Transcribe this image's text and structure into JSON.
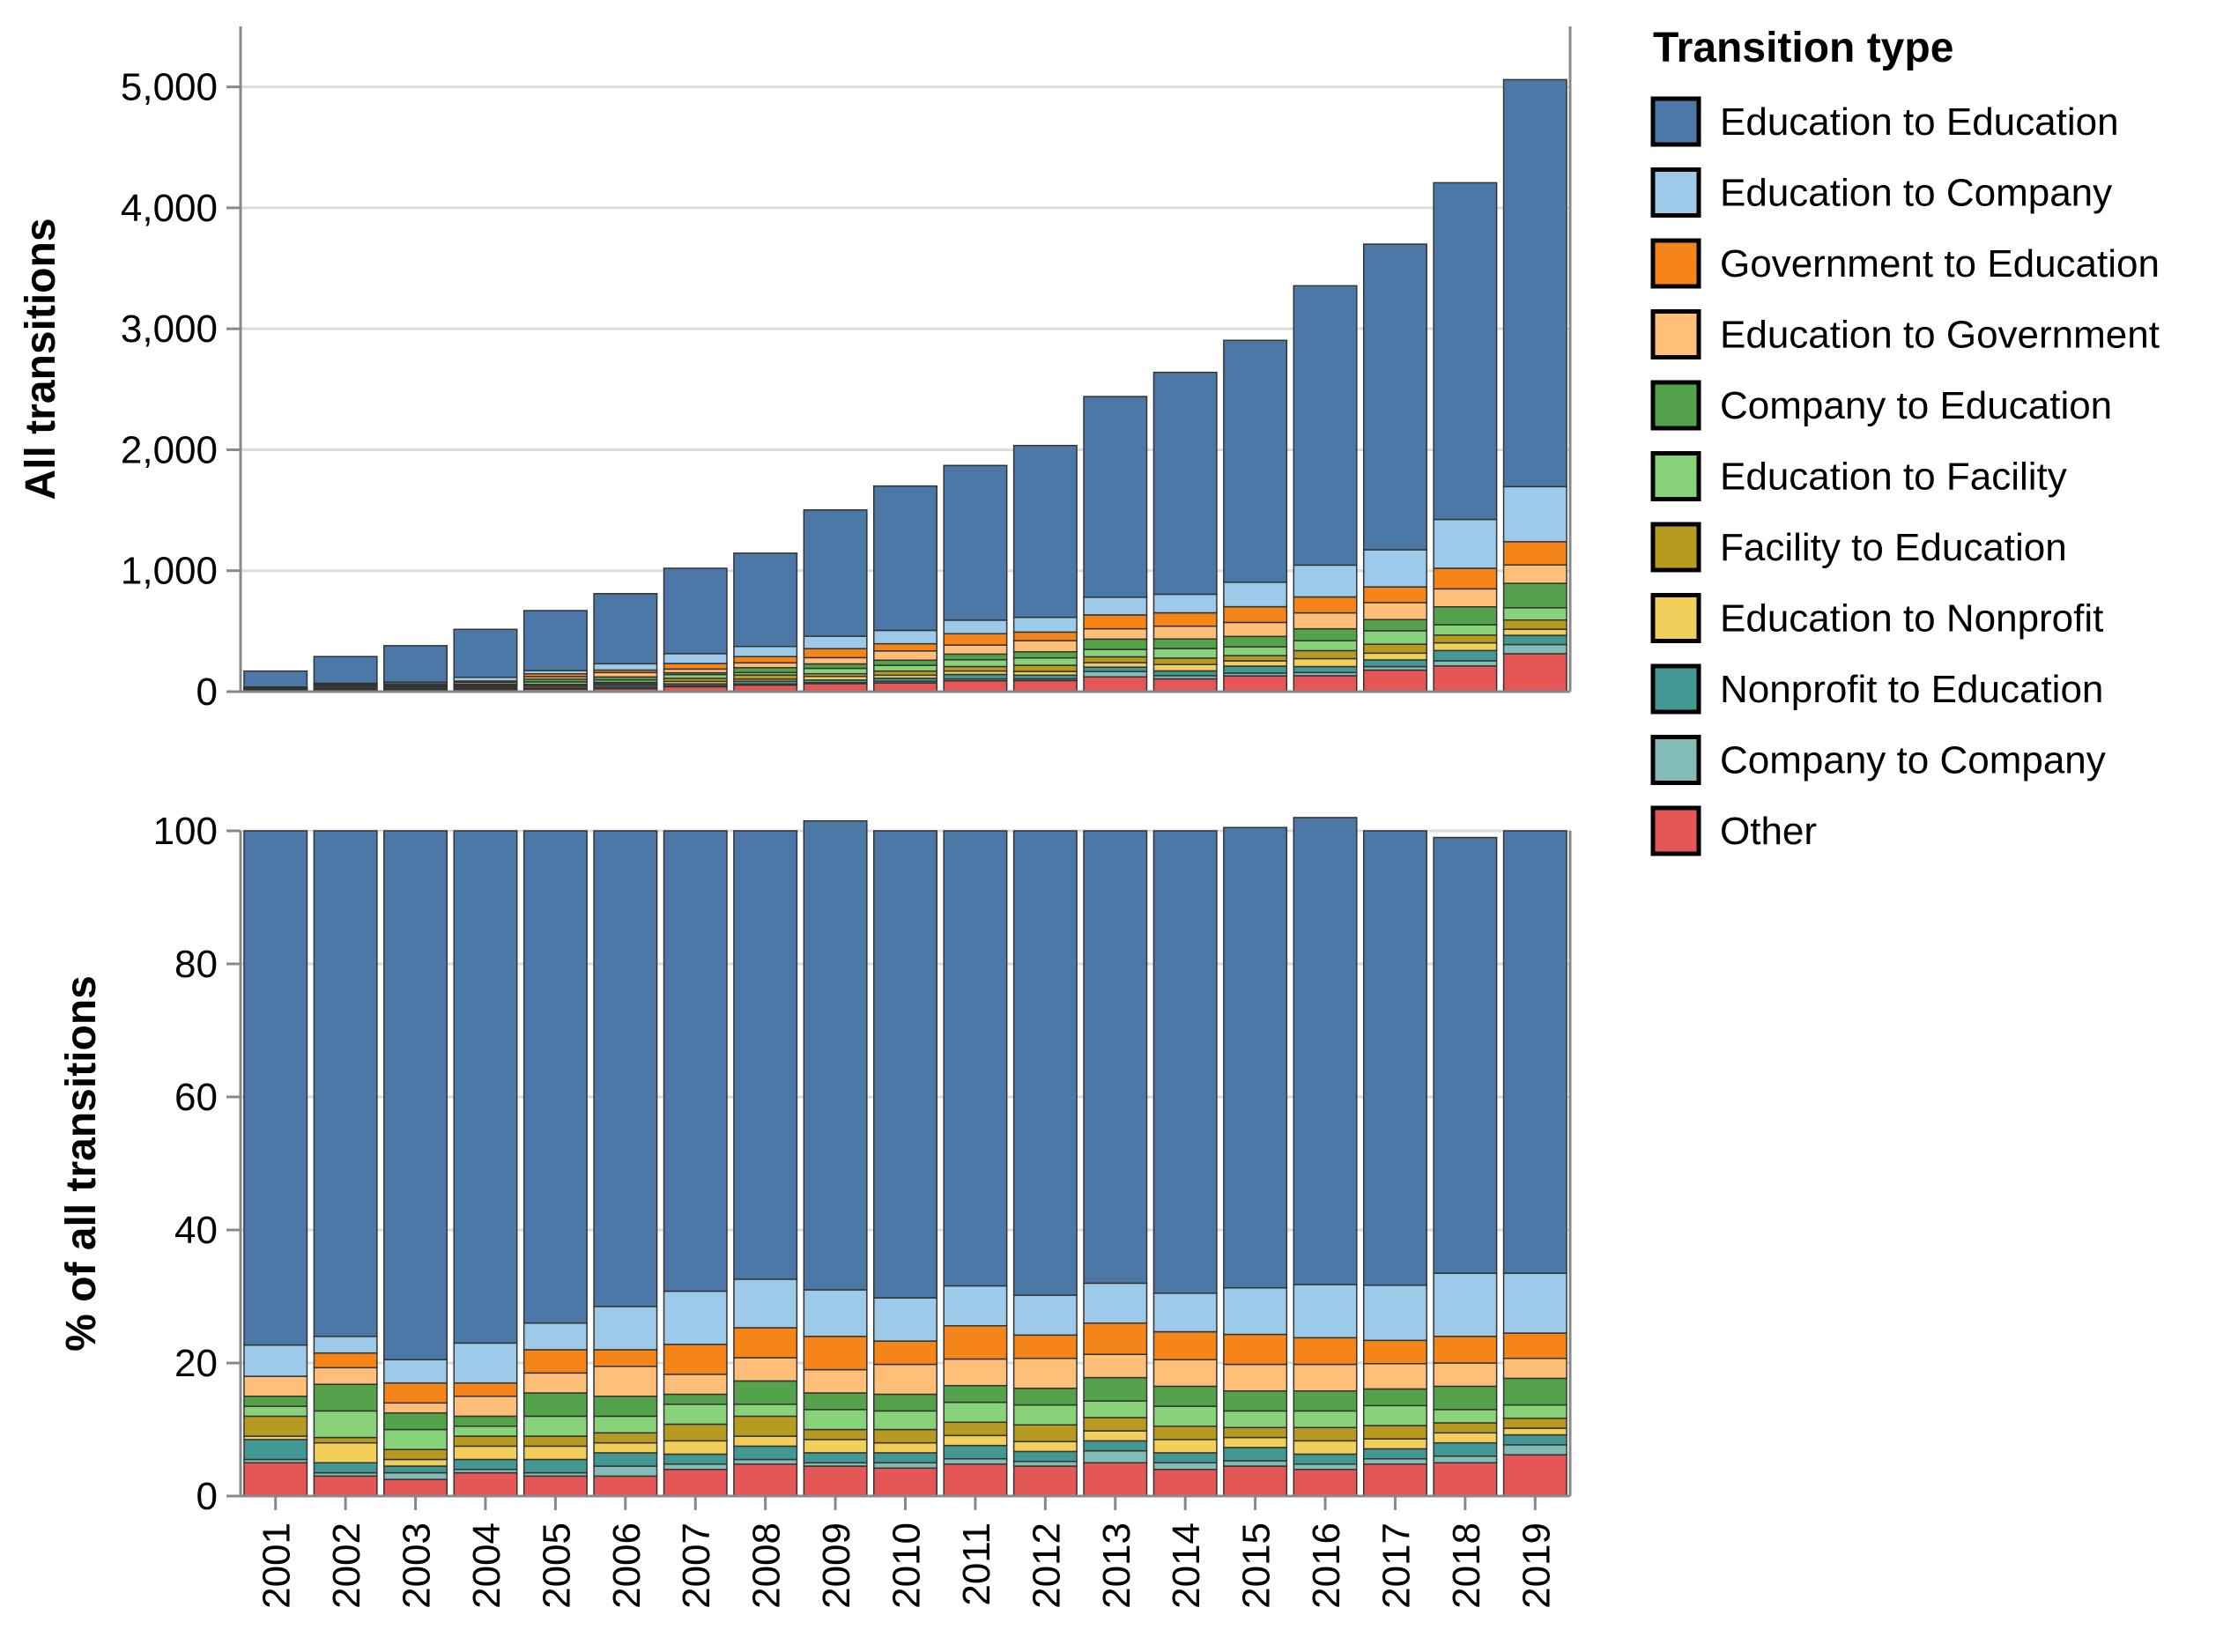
{
  "chart_data": {
    "type": "bar",
    "stacked": true,
    "x": [
      "2001",
      "2002",
      "2003",
      "2004",
      "2005",
      "2006",
      "2007",
      "2008",
      "2009",
      "2010",
      "2011",
      "2012",
      "2013",
      "2014",
      "2015",
      "2016",
      "2017",
      "2018",
      "2019"
    ],
    "totals": [
      170,
      290,
      380,
      515,
      670,
      810,
      1020,
      1145,
      1480,
      1700,
      1870,
      2035,
      2440,
      2640,
      2890,
      3290,
      3700,
      4250,
      5060
    ],
    "legend": {
      "title": "Transition type",
      "position": "right"
    },
    "series": [
      {
        "name": "Other",
        "color": "#e45756",
        "pct": [
          5.0,
          3.0,
          2.5,
          3.5,
          3.0,
          3.0,
          4.0,
          4.8,
          4.5,
          4.2,
          4.8,
          4.5,
          5.0,
          4.0,
          4.5,
          4.0,
          4.8,
          5.0,
          6.2
        ]
      },
      {
        "name": "Company to Company",
        "color": "#83bcb6",
        "pct": [
          0.5,
          0.5,
          1.0,
          0.5,
          0.5,
          1.5,
          0.8,
          0.7,
          0.5,
          0.8,
          0.8,
          0.7,
          1.8,
          1.0,
          0.8,
          0.8,
          0.8,
          1.0,
          1.5
        ]
      },
      {
        "name": "Nonprofit to Education",
        "color": "#439894",
        "pct": [
          3.0,
          1.5,
          1.0,
          1.5,
          2.0,
          2.0,
          1.5,
          2.0,
          1.5,
          1.5,
          2.0,
          1.5,
          1.5,
          1.5,
          2.0,
          1.5,
          1.5,
          2.0,
          1.5
        ]
      },
      {
        "name": "Education to Nonprofit",
        "color": "#f2cf5b",
        "pct": [
          0.5,
          3.0,
          1.0,
          2.0,
          2.0,
          1.5,
          2.0,
          1.5,
          2.0,
          1.5,
          1.5,
          1.5,
          1.5,
          2.0,
          1.5,
          2.0,
          1.5,
          1.5,
          1.0
        ]
      },
      {
        "name": "Facility to Education",
        "color": "#b79a20",
        "pct": [
          3.0,
          0.8,
          1.5,
          1.5,
          1.5,
          1.5,
          2.5,
          3.0,
          1.5,
          2.0,
          2.0,
          2.5,
          2.0,
          2.0,
          1.5,
          2.0,
          2.0,
          1.5,
          1.5
        ]
      },
      {
        "name": "Education to Facility",
        "color": "#88d27a",
        "pct": [
          1.5,
          4.0,
          3.0,
          1.5,
          3.0,
          2.5,
          3.0,
          1.8,
          3.0,
          2.8,
          3.0,
          3.0,
          2.5,
          3.0,
          2.5,
          2.5,
          3.0,
          2.0,
          2.0
        ]
      },
      {
        "name": "Company to Education",
        "color": "#54a24b",
        "pct": [
          1.5,
          4.0,
          2.5,
          1.5,
          3.5,
          3.0,
          1.5,
          3.5,
          2.5,
          2.5,
          2.5,
          2.5,
          3.5,
          3.0,
          3.0,
          3.0,
          2.5,
          3.5,
          4.0
        ]
      },
      {
        "name": "Education to Government",
        "color": "#ffbf79",
        "pct": [
          3.0,
          2.5,
          1.5,
          3.0,
          3.0,
          4.5,
          3.0,
          3.5,
          3.5,
          4.5,
          4.0,
          4.5,
          3.5,
          4.0,
          4.0,
          4.0,
          3.8,
          3.5,
          3.0
        ]
      },
      {
        "name": "Government to Education",
        "color": "#f58518",
        "pct": [
          0.0,
          2.2,
          3.0,
          2.0,
          3.5,
          2.5,
          4.5,
          4.5,
          5.0,
          3.5,
          5.0,
          3.5,
          4.7,
          4.2,
          4.5,
          4.0,
          3.5,
          4.0,
          3.8
        ]
      },
      {
        "name": "Education to Company",
        "color": "#9ecae9",
        "pct": [
          4.7,
          2.5,
          3.5,
          6.0,
          4.0,
          6.5,
          8.0,
          7.3,
          7.0,
          6.5,
          6.0,
          6.0,
          6.0,
          5.8,
          7.0,
          8.0,
          8.3,
          9.5,
          9.0
        ]
      },
      {
        "name": "Education to Education",
        "color": "#4c78a8",
        "pct": [
          77.3,
          76.0,
          79.5,
          77.0,
          74.0,
          71.5,
          69.2,
          67.4,
          70.5,
          70.2,
          68.4,
          69.8,
          68.0,
          69.5,
          69.2,
          70.2,
          68.3,
          65.5,
          66.5
        ]
      }
    ],
    "legend_order": [
      "Education to Education",
      "Education to Company",
      "Government to Education",
      "Education to Government",
      "Company to Education",
      "Education to Facility",
      "Facility to Education",
      "Education to Nonprofit",
      "Nonprofit to Education",
      "Company to Company",
      "Other"
    ],
    "charts": [
      {
        "id": "top",
        "ylabel": "All transitions",
        "ylim": [
          0,
          5500
        ],
        "yticks": [
          0,
          1000,
          2000,
          3000,
          4000,
          5000
        ],
        "ytick_labels": [
          "0",
          "1,000",
          "2,000",
          "3,000",
          "4,000",
          "5,000"
        ],
        "mode": "absolute",
        "grid": true
      },
      {
        "id": "bottom",
        "ylabel": "% of all transitions",
        "ylim": [
          0,
          100
        ],
        "yticks": [
          0,
          20,
          40,
          60,
          80,
          100
        ],
        "ytick_labels": [
          "0",
          "20",
          "40",
          "60",
          "80",
          "100"
        ],
        "mode": "percent",
        "grid": true
      }
    ]
  }
}
